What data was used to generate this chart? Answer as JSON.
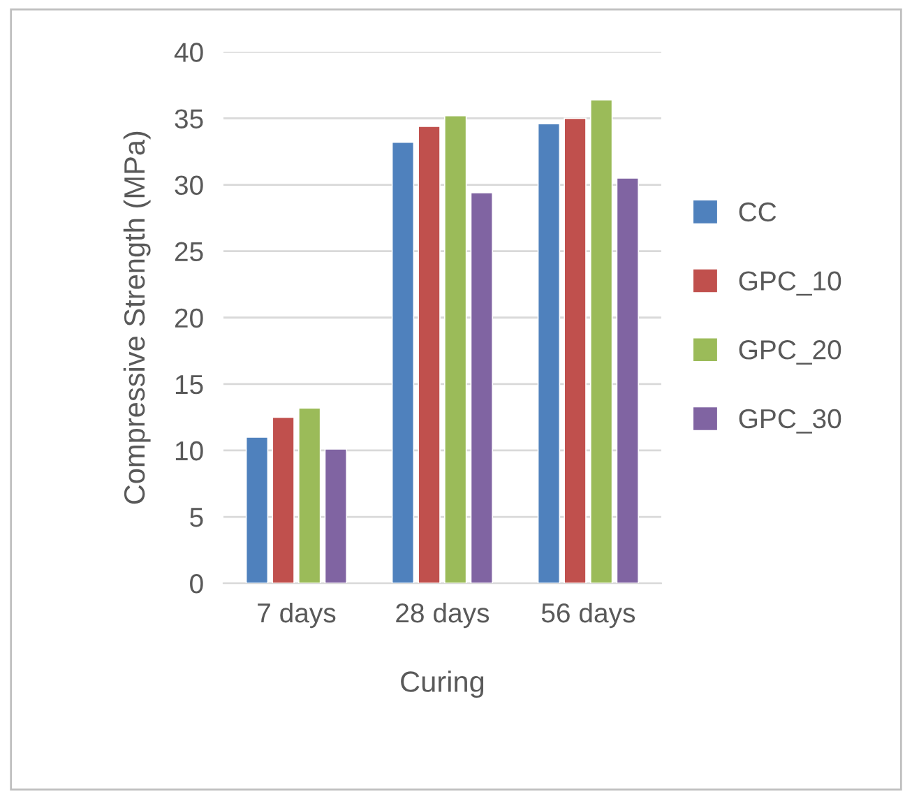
{
  "chart_data": {
    "type": "bar",
    "xlabel": "Curing",
    "ylabel": "Compressive Strength (MPa)",
    "categories": [
      "7 days",
      "28 days",
      "56 days"
    ],
    "series": [
      {
        "name": "CC",
        "color": "#4f81bd",
        "values": [
          11.0,
          33.2,
          34.6
        ]
      },
      {
        "name": "GPC_10",
        "color": "#c0504d",
        "values": [
          12.5,
          34.4,
          35.0
        ]
      },
      {
        "name": "GPC_20",
        "color": "#9bbb59",
        "values": [
          13.2,
          35.2,
          36.4
        ]
      },
      {
        "name": "GPC_30",
        "color": "#8064a2",
        "values": [
          10.1,
          29.4,
          30.5
        ]
      }
    ],
    "ylim": [
      0,
      40
    ],
    "yticks": [
      0,
      5,
      10,
      15,
      20,
      25,
      30,
      35,
      40
    ],
    "grid": "y",
    "legend": "right"
  }
}
